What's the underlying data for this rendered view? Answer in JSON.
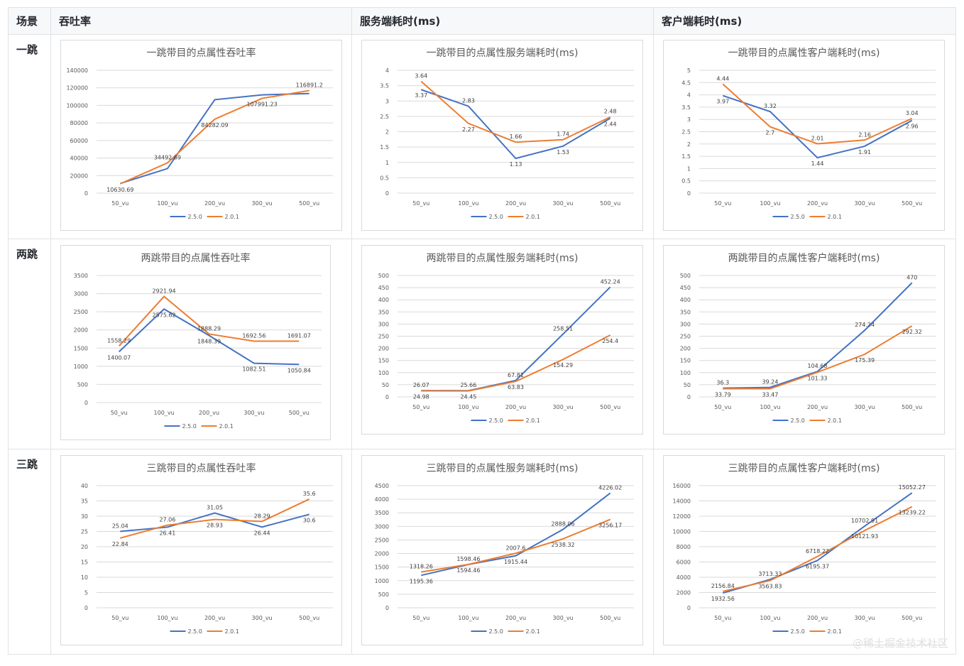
{
  "header": {
    "col_scene": "场景",
    "col_throughput": "吞吐率",
    "col_server": "服务端耗时(ms)",
    "col_client": "客户端耗时(ms)"
  },
  "rows": [
    {
      "label": "一跳"
    },
    {
      "label": "两跳"
    },
    {
      "label": "三跳"
    }
  ],
  "colors": {
    "s250": "#4472c4",
    "s201": "#ed7d31"
  },
  "watermark": "@稀土掘金技术社区",
  "chart_data": [
    {
      "type": "line",
      "title": "一跳带目的点属性吞吐率",
      "categories": [
        "50_vu",
        "100_vu",
        "200_vu",
        "300_vu",
        "500_vu"
      ],
      "ylim": [
        0,
        140000
      ],
      "yticks": [
        0,
        20000,
        40000,
        60000,
        80000,
        100000,
        120000,
        140000
      ],
      "series": [
        {
          "name": "2.5.0",
          "values": [
            11000,
            28000,
            106500,
            112000,
            113500
          ],
          "labels": []
        },
        {
          "name": "2.0.1",
          "values": [
            10630.69,
            34492.69,
            84282.09,
            107991.23,
            116891.2
          ],
          "labels": [
            "10630.69",
            "34492.69",
            "84282.09",
            "107991.23",
            "116891.2"
          ]
        }
      ]
    },
    {
      "type": "line",
      "title": "一跳带目的点属性服务端耗时(ms)",
      "categories": [
        "50_vu",
        "100_vu",
        "200_vu",
        "300_vu",
        "500_vu"
      ],
      "ylim": [
        0,
        4
      ],
      "yticks": [
        0,
        0.5,
        1,
        1.5,
        2,
        2.5,
        3,
        3.5,
        4
      ],
      "series": [
        {
          "name": "2.5.0",
          "values": [
            3.37,
            2.83,
            1.13,
            1.53,
            2.44
          ],
          "labels": [
            "3.37",
            "2.83",
            "1.13",
            "1.53",
            "2.44"
          ]
        },
        {
          "name": "2.0.1",
          "values": [
            3.64,
            2.27,
            1.66,
            1.74,
            2.48
          ],
          "labels": [
            "3.64",
            "2.27",
            "1.66",
            "1.74",
            "2.48"
          ]
        }
      ]
    },
    {
      "type": "line",
      "title": "一跳带目的点属性客户端耗时(ms)",
      "categories": [
        "50_vu",
        "100_vu",
        "200_vu",
        "300_vu",
        "500_vu"
      ],
      "ylim": [
        0,
        5
      ],
      "yticks": [
        0,
        0.5,
        1,
        1.5,
        2,
        2.5,
        3,
        3.5,
        4,
        4.5,
        5
      ],
      "series": [
        {
          "name": "2.5.0",
          "values": [
            3.97,
            3.32,
            1.44,
            1.91,
            2.96
          ],
          "labels": [
            "3.97",
            "3.32",
            "1.44",
            "1.91",
            "2.96"
          ]
        },
        {
          "name": "2.0.1",
          "values": [
            4.44,
            2.7,
            2.01,
            2.16,
            3.04
          ],
          "labels": [
            "4.44",
            "2.7",
            "2.01",
            "2.16",
            "3.04"
          ]
        }
      ]
    },
    {
      "type": "line",
      "title": "两跳带目的点属性吞吐率",
      "categories": [
        "50_vu",
        "100_vu",
        "200_vu",
        "300_vu",
        "500_vu"
      ],
      "ylim": [
        0,
        3500
      ],
      "yticks": [
        0,
        500,
        1000,
        1500,
        2000,
        2500,
        3000,
        3500
      ],
      "series": [
        {
          "name": "2.5.0",
          "values": [
            1400.07,
            2575.62,
            1848.39,
            1082.51,
            1050.84
          ],
          "labels": [
            "1400.07",
            "2575.62",
            "1848.39",
            "1082.51",
            "1050.84"
          ]
        },
        {
          "name": "2.0.1",
          "values": [
            1558.29,
            2921.94,
            1888.29,
            1692.56,
            1691.07
          ],
          "labels": [
            "1558.29",
            "2921.94",
            "1888.29",
            "1692.56",
            "1691.07"
          ]
        }
      ]
    },
    {
      "type": "line",
      "title": "两跳带目的点属性服务端耗时(ms)",
      "categories": [
        "50_vu",
        "100_vu",
        "200_vu",
        "300_vu",
        "500_vu"
      ],
      "ylim": [
        0,
        500
      ],
      "yticks": [
        0,
        50,
        100,
        150,
        200,
        250,
        300,
        350,
        400,
        450,
        500
      ],
      "series": [
        {
          "name": "2.5.0",
          "values": [
            26.07,
            25.66,
            67.81,
            258.51,
            452.24
          ],
          "labels": [
            "26.07",
            "25.66",
            "67.81",
            "258.51",
            "452.24"
          ]
        },
        {
          "name": "2.0.1",
          "values": [
            24.98,
            24.45,
            63.83,
            154.29,
            254.4
          ],
          "labels": [
            "24.98",
            "24.45",
            "63.83",
            "154.29",
            "254.4"
          ]
        }
      ]
    },
    {
      "type": "line",
      "title": "两跳带目的点属性客户端耗时(ms)",
      "categories": [
        "50_vu",
        "100_vu",
        "200_vu",
        "300_vu",
        "500_vu"
      ],
      "ylim": [
        0,
        500
      ],
      "yticks": [
        0,
        50,
        100,
        150,
        200,
        250,
        300,
        350,
        400,
        450,
        500
      ],
      "series": [
        {
          "name": "2.5.0",
          "values": [
            36.3,
            39.24,
            104.68,
            274.24,
            470
          ],
          "labels": [
            "36.3",
            "39.24",
            "104.68",
            "274.24",
            "470"
          ]
        },
        {
          "name": "2.0.1",
          "values": [
            33.79,
            33.47,
            101.33,
            175.39,
            292.32
          ],
          "labels": [
            "33.79",
            "33.47",
            "101.33",
            "175.39",
            "292.32"
          ]
        }
      ]
    },
    {
      "type": "line",
      "title": "三跳带目的点属性吞吐率",
      "categories": [
        "50_vu",
        "100_vu",
        "200_vu",
        "300_vu",
        "500_vu"
      ],
      "ylim": [
        0,
        40
      ],
      "yticks": [
        0,
        5,
        10,
        15,
        20,
        25,
        30,
        35,
        40
      ],
      "series": [
        {
          "name": "2.5.0",
          "values": [
            25.04,
            26.41,
            31.05,
            26.44,
            30.6
          ],
          "labels": [
            "25.04",
            "26.41",
            "31.05",
            "26.44",
            "30.6"
          ]
        },
        {
          "name": "2.0.1",
          "values": [
            22.84,
            27.06,
            28.93,
            28.29,
            35.6
          ],
          "labels": [
            "22.84",
            "27.06",
            "28.93",
            "28.29",
            "35.6"
          ]
        }
      ]
    },
    {
      "type": "line",
      "title": "三跳带目的点属性服务端耗时(ms)",
      "categories": [
        "50_vu",
        "100_vu",
        "200_vu",
        "300_vu",
        "500_vu"
      ],
      "ylim": [
        0,
        4500
      ],
      "yticks": [
        0,
        500,
        1000,
        1500,
        2000,
        2500,
        3000,
        3500,
        4000,
        4500
      ],
      "series": [
        {
          "name": "2.5.0",
          "values": [
            1195.36,
            1594.46,
            1915.44,
            2888.06,
            4226.02
          ],
          "labels": [
            "1195.36",
            "1594.46",
            "1915.44",
            "2888.06",
            "4226.02"
          ]
        },
        {
          "name": "2.0.1",
          "values": [
            1318.26,
            1598.46,
            2007.6,
            2538.32,
            3256.17
          ],
          "labels": [
            "1318.26",
            "1598.46",
            "2007.6",
            "2538.32",
            "3256.17"
          ]
        }
      ]
    },
    {
      "type": "line",
      "title": "三跳带目的点属性客户端耗时(ms)",
      "categories": [
        "50_vu",
        "100_vu",
        "200_vu",
        "300_vu",
        "500_vu"
      ],
      "ylim": [
        0,
        16000
      ],
      "yticks": [
        0,
        2000,
        4000,
        6000,
        8000,
        10000,
        12000,
        14000,
        16000
      ],
      "series": [
        {
          "name": "2.5.0",
          "values": [
            1932.56,
            3713.33,
            6195.37,
            10702.91,
            15052.27
          ],
          "labels": [
            "1932.56",
            "3713.33",
            "6195.37",
            "10702.91",
            "15052.27"
          ]
        },
        {
          "name": "2.0.1",
          "values": [
            2156.84,
            3563.83,
            6718.22,
            10121.93,
            13239.22
          ],
          "labels": [
            "2156.84",
            "3563.83",
            "6718.22",
            "10121.93",
            "13239.22"
          ]
        }
      ]
    }
  ]
}
